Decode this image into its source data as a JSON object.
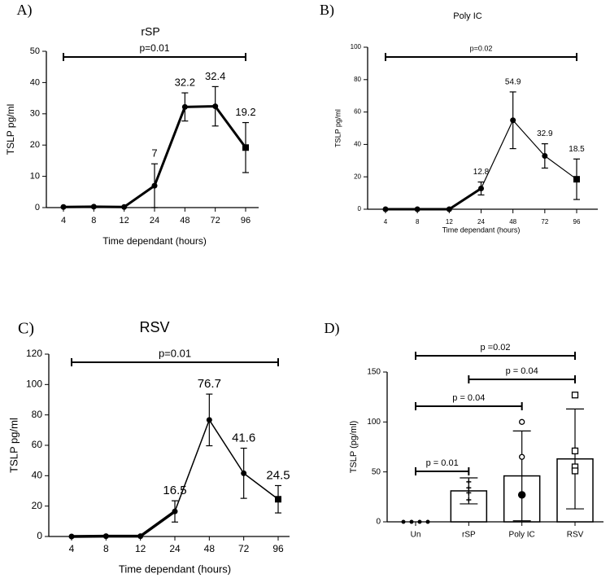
{
  "chart_data": [
    {
      "type": "line",
      "panel": "A)",
      "title": "rSP",
      "categories": [
        "4",
        "8",
        "12",
        "24",
        "48",
        "72",
        "96"
      ],
      "values": [
        0.2,
        0.3,
        0.2,
        7,
        32.2,
        32.4,
        19.2
      ],
      "errors": [
        0,
        0,
        0,
        7,
        4.5,
        6.3,
        8
      ],
      "value_labels": [
        null,
        null,
        null,
        "7",
        "32.2",
        "32.4",
        "19.2"
      ],
      "xlabel": "Time dependant (hours)",
      "ylabel": "TSLP pg/ml",
      "ylim": [
        0,
        50
      ],
      "yticks": [
        0,
        10,
        20,
        30,
        40,
        50
      ],
      "annotations": [
        {
          "text": "p=0.01",
          "from": 0,
          "to": 6
        }
      ]
    },
    {
      "type": "line",
      "panel": "B)",
      "title": "Poly IC",
      "categories": [
        "4",
        "8",
        "12",
        "24",
        "48",
        "72",
        "96"
      ],
      "values": [
        0,
        0,
        0,
        12.8,
        54.9,
        32.9,
        18.5
      ],
      "errors": [
        0,
        0,
        0,
        4,
        17.5,
        7.5,
        12.5
      ],
      "value_labels": [
        null,
        null,
        null,
        "12.8",
        "54.9",
        "32.9",
        "18.5"
      ],
      "xlabel": "Time dependant (hours)",
      "ylabel": "TSLP pg/ml",
      "ylim": [
        0,
        100
      ],
      "yticks": [
        0,
        20,
        40,
        60,
        80,
        100
      ],
      "annotations": [
        {
          "text": "p=0.02",
          "from": 0,
          "to": 6
        }
      ]
    },
    {
      "type": "line",
      "panel": "C)",
      "title": "RSV",
      "categories": [
        "4",
        "8",
        "12",
        "24",
        "48",
        "72",
        "96"
      ],
      "values": [
        0,
        0.2,
        0.2,
        16.5,
        76.7,
        41.6,
        24.5
      ],
      "errors": [
        0,
        0,
        0,
        7,
        17,
        16.5,
        9
      ],
      "value_labels": [
        null,
        null,
        null,
        "16.5",
        "76.7",
        "41.6",
        "24.5"
      ],
      "xlabel": "Time dependant (hours)",
      "ylabel": "TSLP pg/ml",
      "ylim": [
        0,
        120
      ],
      "yticks": [
        0,
        20,
        40,
        60,
        80,
        100,
        120
      ],
      "annotations": [
        {
          "text": "p=0.01",
          "from": 0,
          "to": 6
        }
      ]
    },
    {
      "type": "bar",
      "panel": "D)",
      "categories": [
        "Un",
        "rSP",
        "Poly IC",
        "RSV"
      ],
      "values": [
        0,
        31,
        46,
        63
      ],
      "errors": [
        0,
        13,
        45,
        50
      ],
      "points": [
        [
          0,
          0,
          0,
          0
        ],
        [
          40,
          34,
          29,
          22
        ],
        [
          100,
          65,
          27,
          27
        ],
        [
          127,
          71,
          55,
          51
        ]
      ],
      "ylabel": "TSLP (pg/ml)",
      "ylim": [
        0,
        150
      ],
      "yticks": [
        0,
        50,
        100,
        150
      ],
      "annotations": [
        {
          "text": "p =0.02",
          "from": 0,
          "to": 3
        },
        {
          "text": "p = 0.04",
          "from": 1,
          "to": 3
        },
        {
          "text": "p = 0.04",
          "from": 0,
          "to": 2
        },
        {
          "text": "p = 0.01",
          "from": 0,
          "to": 1
        }
      ]
    }
  ]
}
